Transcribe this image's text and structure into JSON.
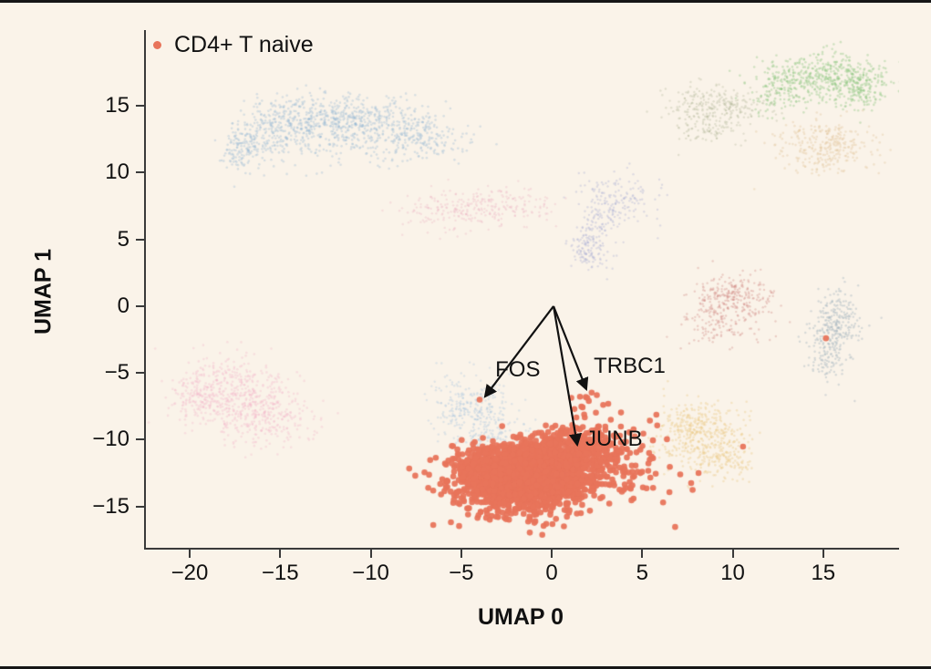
{
  "figure": {
    "background": "#faf3e9",
    "border_color": "#161616",
    "spine_color": "#3a3a3a",
    "text_color": "#111111"
  },
  "legend": {
    "label": "CD4+ T naive",
    "marker_color": "#e8745b"
  },
  "axes": {
    "xlabel": "UMAP 0",
    "ylabel": "UMAP 1",
    "xlim": [
      -22.52,
      19.09
    ],
    "ylim": [
      -18.09,
      20.68
    ],
    "x_ticks": [
      {
        "v": -20,
        "label": "−20"
      },
      {
        "v": -15,
        "label": "−15"
      },
      {
        "v": -10,
        "label": "−10"
      },
      {
        "v": -5,
        "label": "−5"
      },
      {
        "v": 0,
        "label": "0"
      },
      {
        "v": 5,
        "label": "5"
      },
      {
        "v": 10,
        "label": "10"
      },
      {
        "v": 15,
        "label": "15"
      }
    ],
    "y_ticks": [
      {
        "v": 15,
        "label": "15"
      },
      {
        "v": 10,
        "label": "10"
      },
      {
        "v": 5,
        "label": "5"
      },
      {
        "v": 0,
        "label": "0"
      },
      {
        "v": -5,
        "label": "−5"
      },
      {
        "v": -10,
        "label": "−10"
      },
      {
        "v": -15,
        "label": "−15"
      }
    ],
    "grid": false
  },
  "annotations": [
    {
      "label": "FOS",
      "from": [
        0,
        0
      ],
      "to": [
        -3.78,
        -6.76
      ],
      "label_anchor": [
        -3.22,
        -3.96
      ]
    },
    {
      "label": "TRBC1",
      "from": [
        0,
        0
      ],
      "to": [
        1.81,
        -6.21
      ],
      "label_anchor": [
        2.22,
        -3.69
      ]
    },
    {
      "label": "JUNB",
      "from": [
        0,
        0
      ],
      "to": [
        1.31,
        -10.38
      ],
      "label_anchor": [
        1.76,
        -9.15
      ]
    }
  ],
  "chart_data": {
    "type": "scatter",
    "title": "",
    "xlabel": "UMAP 0",
    "ylabel": "UMAP 1",
    "legend_position": "upper left",
    "highlighted_cluster": "CD4+ T naive",
    "highlight_color": "#e8745b",
    "seed": 42,
    "clusters": [
      {
        "name": "b-cells-blue-arc",
        "color": "#88aed2",
        "alpha": 0.3,
        "radius": 1.3,
        "blobs": [
          {
            "x": -17.3,
            "y": 11.9,
            "sx": 0.5,
            "sy": 0.9,
            "n": 130
          },
          {
            "x": -15.4,
            "y": 13.4,
            "sx": 1.1,
            "sy": 1.0,
            "n": 230
          },
          {
            "x": -12.9,
            "y": 14.1,
            "sx": 1.4,
            "sy": 0.9,
            "n": 270
          },
          {
            "x": -9.9,
            "y": 13.8,
            "sx": 1.5,
            "sy": 1.0,
            "n": 270
          },
          {
            "x": -7.2,
            "y": 12.7,
            "sx": 1.2,
            "sy": 1.0,
            "n": 170
          },
          {
            "x": -12.0,
            "y": 12.0,
            "sx": 3.0,
            "sy": 0.9,
            "n": 140
          }
        ]
      },
      {
        "name": "pink-band-mid",
        "color": "#eaa6ba",
        "alpha": 0.28,
        "radius": 1.2,
        "blobs": [
          {
            "x": -5.6,
            "y": 7.1,
            "sx": 1.4,
            "sy": 0.8,
            "n": 150
          },
          {
            "x": -2.9,
            "y": 7.6,
            "sx": 1.4,
            "sy": 0.7,
            "n": 150
          }
        ]
      },
      {
        "name": "lavender-v-mid",
        "color": "#9aa3cf",
        "alpha": 0.3,
        "radius": 1.2,
        "blobs": [
          {
            "x": 3.4,
            "y": 7.9,
            "sx": 1.1,
            "sy": 1.0,
            "n": 170
          },
          {
            "x": 2.3,
            "y": 5.3,
            "sx": 0.55,
            "sy": 1.1,
            "n": 110
          },
          {
            "x": 1.7,
            "y": 4.0,
            "sx": 0.4,
            "sy": 0.6,
            "n": 60
          }
        ]
      },
      {
        "name": "green-top-right",
        "color": "#8cc47e",
        "alpha": 0.38,
        "radius": 1.3,
        "blobs": [
          {
            "x": 14.9,
            "y": 17.2,
            "sx": 1.7,
            "sy": 0.85,
            "n": 420
          },
          {
            "x": 16.8,
            "y": 16.3,
            "sx": 0.8,
            "sy": 0.8,
            "n": 140
          },
          {
            "x": 12.6,
            "y": 16.0,
            "sx": 1.0,
            "sy": 0.8,
            "n": 120
          }
        ]
      },
      {
        "name": "olive-extension",
        "color": "#a8ae90",
        "alpha": 0.3,
        "radius": 1.2,
        "blobs": [
          {
            "x": 8.3,
            "y": 14.9,
            "sx": 1.0,
            "sy": 0.8,
            "n": 160
          },
          {
            "x": 10.3,
            "y": 15.2,
            "sx": 1.3,
            "sy": 0.6,
            "n": 100
          },
          {
            "x": 8.6,
            "y": 13.2,
            "sx": 0.9,
            "sy": 0.7,
            "n": 80
          }
        ]
      },
      {
        "name": "tan-right",
        "color": "#e3c8a0",
        "alpha": 0.4,
        "radius": 1.3,
        "blobs": [
          {
            "x": 15.0,
            "y": 12.0,
            "sx": 1.3,
            "sy": 1.0,
            "n": 300
          }
        ]
      },
      {
        "name": "brick-right",
        "color": "#d18f88",
        "alpha": 0.38,
        "radius": 1.2,
        "blobs": [
          {
            "x": 9.9,
            "y": 0.6,
            "sx": 1.1,
            "sy": 0.9,
            "n": 280
          },
          {
            "x": 9.0,
            "y": -1.3,
            "sx": 1.2,
            "sy": 0.8,
            "n": 110
          }
        ]
      },
      {
        "name": "grayblue-far-right",
        "color": "#a9b7c0",
        "alpha": 0.45,
        "radius": 1.2,
        "blobs": [
          {
            "x": 15.7,
            "y": -1.1,
            "sx": 0.7,
            "sy": 1.1,
            "n": 220
          },
          {
            "x": 15.2,
            "y": -3.6,
            "sx": 0.6,
            "sy": 1.2,
            "n": 130
          }
        ]
      },
      {
        "name": "pink-bottom-left",
        "color": "#f2b3c9",
        "alpha": 0.33,
        "radius": 1.3,
        "blobs": [
          {
            "x": -17.7,
            "y": -6.1,
            "sx": 1.5,
            "sy": 1.2,
            "n": 340
          },
          {
            "x": -16.1,
            "y": -8.3,
            "sx": 1.5,
            "sy": 1.1,
            "n": 300
          },
          {
            "x": -19.6,
            "y": -7.1,
            "sx": 0.8,
            "sy": 1.0,
            "n": 130
          }
        ]
      },
      {
        "name": "lightblue-behind-fos",
        "color": "#a3c2de",
        "alpha": 0.32,
        "radius": 1.2,
        "blobs": [
          {
            "x": -4.5,
            "y": -7.5,
            "sx": 1.2,
            "sy": 1.3,
            "n": 280
          },
          {
            "x": -3.3,
            "y": -10.1,
            "sx": 1.0,
            "sy": 0.9,
            "n": 130
          }
        ]
      },
      {
        "name": "gold-right",
        "color": "#eccc8f",
        "alpha": 0.42,
        "radius": 1.3,
        "blobs": [
          {
            "x": 8.1,
            "y": -9.5,
            "sx": 1.2,
            "sy": 1.2,
            "n": 420
          },
          {
            "x": 9.4,
            "y": -11.6,
            "sx": 0.9,
            "sy": 0.8,
            "n": 130
          }
        ]
      },
      {
        "name": "cd4-t-naive",
        "color": "#e8745b",
        "alpha": 0.95,
        "radius": 3.3,
        "blobs": [
          {
            "x": -1.8,
            "y": -13.0,
            "sx": 1.8,
            "sy": 1.3,
            "n": 1300
          },
          {
            "x": 0.5,
            "y": -11.6,
            "sx": 1.3,
            "sy": 1.1,
            "n": 500
          },
          {
            "x": -3.4,
            "y": -12.4,
            "sx": 1.0,
            "sy": 1.0,
            "n": 280
          },
          {
            "x": 1.8,
            "y": -10.6,
            "sx": 1.1,
            "sy": 0.9,
            "n": 160
          },
          {
            "x": 4.0,
            "y": -12.0,
            "sx": 2.0,
            "sy": 1.6,
            "n": 80
          },
          {
            "x": 2.4,
            "y": -7.4,
            "sx": 0.9,
            "sy": 0.8,
            "n": 14
          }
        ]
      },
      {
        "name": "cd4-outlier-points",
        "color": "#e8745b",
        "alpha": 0.95,
        "radius": 3.3,
        "points": [
          [
            15.05,
            -2.4
          ],
          [
            -4.08,
            -7.0
          ],
          [
            4.8,
            -12.5
          ],
          [
            5.5,
            -13.6
          ],
          [
            7.0,
            -12.6
          ]
        ],
        "blobs": []
      }
    ]
  }
}
